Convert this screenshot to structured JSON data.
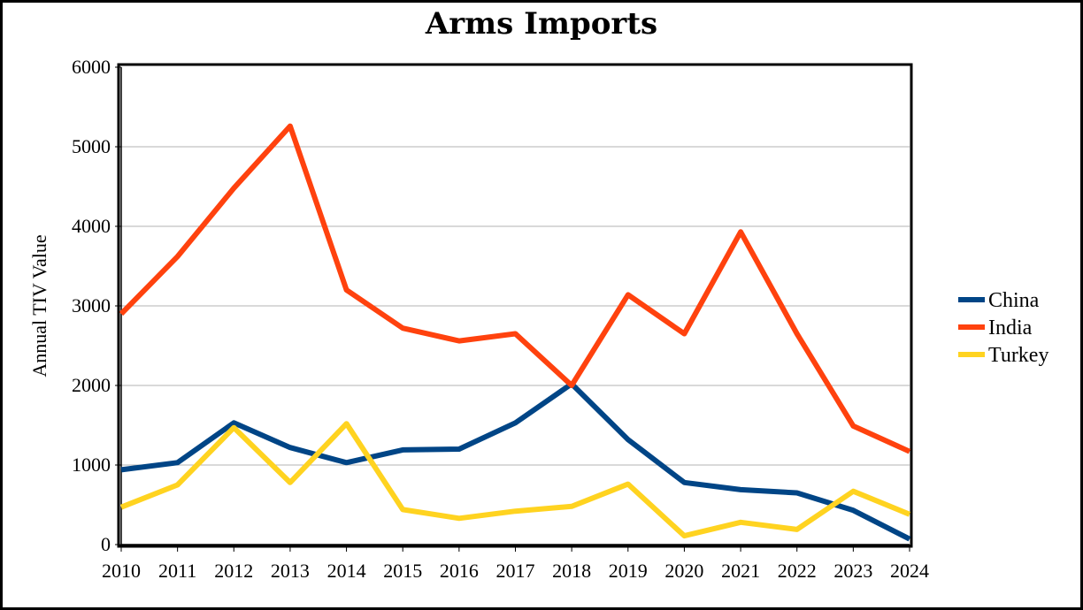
{
  "chart_data": {
    "type": "line",
    "title": "Arms Imports",
    "xlabel": "",
    "ylabel": "Annual TIV Value",
    "x": [
      2010,
      2011,
      2012,
      2013,
      2014,
      2015,
      2016,
      2017,
      2018,
      2019,
      2020,
      2021,
      2022,
      2023,
      2024
    ],
    "x_tick_labels": [
      "2010",
      "2011",
      "2012",
      "2013",
      "2014",
      "2015",
      "2016",
      "2017",
      "2018",
      "2019",
      "2020",
      "2021",
      "2022",
      "2023",
      "2024"
    ],
    "ylim": [
      0,
      6000
    ],
    "y_ticks": [
      0,
      1000,
      2000,
      3000,
      4000,
      5000,
      6000
    ],
    "y_tick_labels": [
      "0",
      "1000",
      "2000",
      "3000",
      "4000",
      "5000",
      "6000"
    ],
    "grid": true,
    "legend_position": "right",
    "series": [
      {
        "name": "China",
        "color": "#004586",
        "values": [
          940,
          1030,
          1530,
          1220,
          1030,
          1190,
          1200,
          1530,
          2020,
          1320,
          780,
          690,
          650,
          430,
          70
        ]
      },
      {
        "name": "India",
        "color": "#ff420e",
        "values": [
          2900,
          3620,
          4480,
          5260,
          3200,
          2720,
          2560,
          2650,
          2000,
          3140,
          2650,
          3930,
          2650,
          1490,
          1170
        ]
      },
      {
        "name": "Turkey",
        "color": "#ffd320",
        "values": [
          470,
          750,
          1470,
          780,
          1520,
          440,
          330,
          420,
          480,
          760,
          110,
          280,
          190,
          670,
          380
        ]
      }
    ]
  }
}
